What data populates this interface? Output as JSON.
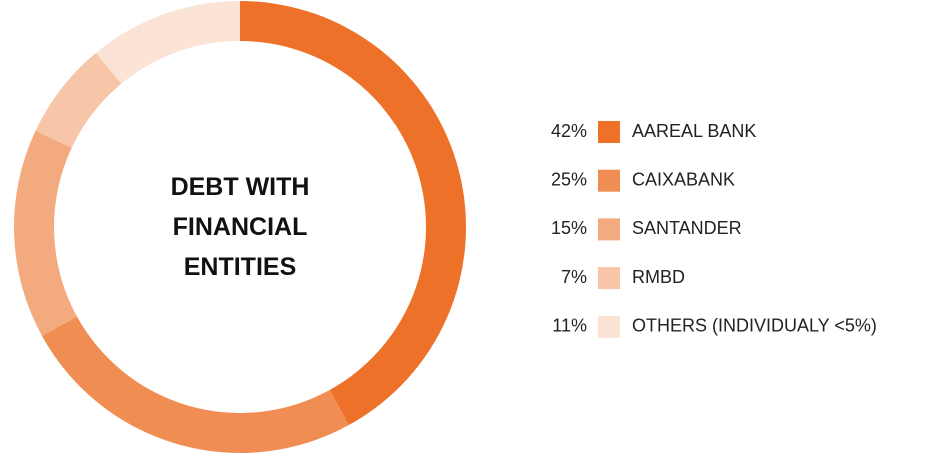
{
  "chart_data": {
    "type": "donut",
    "title": "DEBT WITH FINANCIAL ENTITIES",
    "categories": [
      "AAREAL BANK",
      "CAIXABANK",
      "SANTANDER",
      "RMBD",
      "OTHERS (INDIVIDUALY <5%)"
    ],
    "values": [
      42,
      25,
      15,
      7,
      11
    ],
    "value_labels": [
      "42%",
      "25%",
      "15%",
      "7%",
      "11%"
    ],
    "colors": [
      "#ed7128",
      "#f08d53",
      "#f4aa7f",
      "#f7c6a9",
      "#fbe3d5"
    ],
    "legend": "right"
  }
}
